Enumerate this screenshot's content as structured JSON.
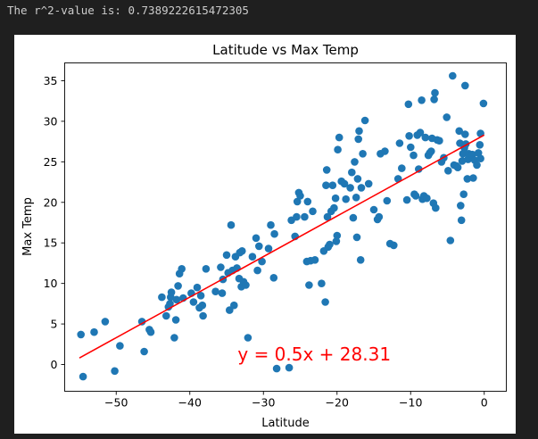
{
  "output": {
    "text": "The r^2-value is: 0.7389222615472305"
  },
  "chart_data": {
    "type": "scatter",
    "title": "Latitude vs Max Temp",
    "xlabel": "Latitude",
    "ylabel": "Max Temp",
    "xlim": [
      -57,
      3
    ],
    "ylim": [
      -3.3,
      37.2
    ],
    "xticks": [
      -50,
      -40,
      -30,
      -20,
      -10,
      0
    ],
    "yticks": [
      0,
      5,
      10,
      15,
      20,
      25,
      30,
      35
    ],
    "grid": false,
    "points_color": "#1f77b4",
    "regression": {
      "slope": 0.5,
      "intercept": 28.31,
      "x_range": [
        -55,
        0
      ],
      "color": "#ff0000",
      "equation_text": "y = 0.5x + 28.31",
      "equation_position": [
        -33.5,
        0.5
      ]
    },
    "points": [
      [
        -54.8,
        3.7
      ],
      [
        -54.5,
        -1.5
      ],
      [
        -53,
        4.0
      ],
      [
        -51.5,
        5.3
      ],
      [
        -50.2,
        -0.8
      ],
      [
        -49.5,
        2.3
      ],
      [
        -46.5,
        5.3
      ],
      [
        -46.2,
        1.6
      ],
      [
        -45.5,
        4.3
      ],
      [
        -45.3,
        4.0
      ],
      [
        -43.8,
        8.3
      ],
      [
        -43.2,
        6.0
      ],
      [
        -42.9,
        7.1
      ],
      [
        -42.7,
        7.5
      ],
      [
        -42.6,
        8.3
      ],
      [
        -42.5,
        8.9
      ],
      [
        -42.1,
        3.3
      ],
      [
        -41.9,
        5.5
      ],
      [
        -41.8,
        8.0
      ],
      [
        -41.6,
        9.7
      ],
      [
        -41.4,
        11.2
      ],
      [
        -41.1,
        11.8
      ],
      [
        -40.9,
        8.2
      ],
      [
        -39.8,
        8.8
      ],
      [
        -39.5,
        7.7
      ],
      [
        -39,
        9.5
      ],
      [
        -38.7,
        7.0
      ],
      [
        -38.5,
        8.5
      ],
      [
        -38.3,
        7.3
      ],
      [
        -38.2,
        6.0
      ],
      [
        -37.8,
        11.8
      ],
      [
        -36.5,
        9.0
      ],
      [
        -35.8,
        12.0
      ],
      [
        -35.6,
        8.8
      ],
      [
        -35.5,
        10.5
      ],
      [
        -35,
        13.5
      ],
      [
        -34.8,
        11.3
      ],
      [
        -34.6,
        6.7
      ],
      [
        -34.4,
        17.2
      ],
      [
        -34.2,
        11.6
      ],
      [
        -34,
        7.3
      ],
      [
        -33.8,
        13.3
      ],
      [
        -33.6,
        11.9
      ],
      [
        -33.3,
        10.6
      ],
      [
        -33.2,
        13.8
      ],
      [
        -33,
        9.6
      ],
      [
        -32.9,
        14.0
      ],
      [
        -32.7,
        10.2
      ],
      [
        -32.4,
        9.8
      ],
      [
        -32.1,
        3.3
      ],
      [
        -31.5,
        13.3
      ],
      [
        -31,
        15.6
      ],
      [
        -30.8,
        11.6
      ],
      [
        -30.6,
        14.6
      ],
      [
        -30.2,
        12.7
      ],
      [
        -29.3,
        14.3
      ],
      [
        -29,
        17.2
      ],
      [
        -28.6,
        10.7
      ],
      [
        -28.5,
        16.1
      ],
      [
        -28.2,
        -0.5
      ],
      [
        -26.5,
        -0.4
      ],
      [
        -26.2,
        17.8
      ],
      [
        -25.7,
        15.8
      ],
      [
        -25.5,
        18.2
      ],
      [
        -25.4,
        20.1
      ],
      [
        -25.2,
        21.2
      ],
      [
        -25,
        20.8
      ],
      [
        -24.4,
        18.2
      ],
      [
        -24.1,
        12.7
      ],
      [
        -24,
        20.1
      ],
      [
        -23.8,
        9.8
      ],
      [
        -23.6,
        12.8
      ],
      [
        -23.3,
        18.9
      ],
      [
        -23,
        12.9
      ],
      [
        -22.1,
        10.0
      ],
      [
        -21.8,
        14.0
      ],
      [
        -21.6,
        7.7
      ],
      [
        -21.5,
        22.1
      ],
      [
        -21.4,
        24.0
      ],
      [
        -21.3,
        18.2
      ],
      [
        -21.2,
        14.5
      ],
      [
        -21,
        14.8
      ],
      [
        -20.8,
        18.9
      ],
      [
        -20.6,
        22.1
      ],
      [
        -20.4,
        19.3
      ],
      [
        -20.2,
        20.5
      ],
      [
        -20.1,
        15.2
      ],
      [
        -20,
        15.9
      ],
      [
        -19.9,
        26.5
      ],
      [
        -19.7,
        28.0
      ],
      [
        -19.4,
        22.6
      ],
      [
        -19,
        22.3
      ],
      [
        -18.8,
        20.4
      ],
      [
        -18.2,
        21.8
      ],
      [
        -18,
        23.7
      ],
      [
        -17.8,
        18.1
      ],
      [
        -17.6,
        25.0
      ],
      [
        -17.4,
        20.6
      ],
      [
        -17.3,
        15.7
      ],
      [
        -17.2,
        22.9
      ],
      [
        -17.1,
        27.8
      ],
      [
        -17,
        28.8
      ],
      [
        -16.8,
        12.9
      ],
      [
        -16.7,
        21.8
      ],
      [
        -16.5,
        26.0
      ],
      [
        -16.2,
        30.1
      ],
      [
        -15.7,
        22.3
      ],
      [
        -15,
        19.1
      ],
      [
        -14.5,
        17.9
      ],
      [
        -14.3,
        18.2
      ],
      [
        -14.1,
        26.0
      ],
      [
        -13.5,
        26.3
      ],
      [
        -13.2,
        20.2
      ],
      [
        -12.8,
        14.9
      ],
      [
        -12.3,
        14.7
      ],
      [
        -11.7,
        22.9
      ],
      [
        -11.5,
        27.3
      ],
      [
        -11.2,
        24.2
      ],
      [
        -10.5,
        20.3
      ],
      [
        -10.3,
        32.1
      ],
      [
        -10.2,
        28.2
      ],
      [
        -10,
        26.8
      ],
      [
        -9.6,
        25.8
      ],
      [
        -9.5,
        21.0
      ],
      [
        -9.3,
        20.8
      ],
      [
        -9.1,
        28.3
      ],
      [
        -8.9,
        24.1
      ],
      [
        -8.7,
        28.6
      ],
      [
        -8.5,
        32.6
      ],
      [
        -8.4,
        20.4
      ],
      [
        -8.2,
        20.8
      ],
      [
        -8,
        28.0
      ],
      [
        -7.8,
        20.5
      ],
      [
        -7.6,
        25.8
      ],
      [
        -7.4,
        26.1
      ],
      [
        -7.2,
        26.3
      ],
      [
        -7.1,
        27.9
      ],
      [
        -6.9,
        19.9
      ],
      [
        -6.8,
        32.7
      ],
      [
        -6.7,
        33.5
      ],
      [
        -6.6,
        19.3
      ],
      [
        -6.4,
        27.7
      ],
      [
        -6.1,
        27.6
      ],
      [
        -5.8,
        25.0
      ],
      [
        -5.5,
        25.5
      ],
      [
        -5.1,
        30.5
      ],
      [
        -4.9,
        23.9
      ],
      [
        -4.6,
        15.3
      ],
      [
        -4.3,
        35.6
      ],
      [
        -4.1,
        24.6
      ],
      [
        -3.8,
        24.5
      ],
      [
        -3.6,
        24.3
      ],
      [
        -3.4,
        28.8
      ],
      [
        -3.3,
        27.3
      ],
      [
        -3.2,
        19.6
      ],
      [
        -3.1,
        17.8
      ],
      [
        -3,
        25.1
      ],
      [
        -2.9,
        26.0
      ],
      [
        -2.8,
        21.0
      ],
      [
        -2.7,
        26.7
      ],
      [
        -2.6,
        28.4
      ],
      [
        -2.6,
        34.4
      ],
      [
        -2.5,
        27.2
      ],
      [
        -2.3,
        22.9
      ],
      [
        -2.2,
        25.3
      ],
      [
        -2.1,
        26.0
      ],
      [
        -2,
        25.5
      ],
      [
        -1.6,
        25.9
      ],
      [
        -1.5,
        23.0
      ],
      [
        -1.3,
        25.2
      ],
      [
        -1,
        24.6
      ],
      [
        -0.8,
        26.1
      ],
      [
        -0.6,
        27.1
      ],
      [
        -0.5,
        25.4
      ],
      [
        -0.5,
        28.5
      ],
      [
        -0.1,
        32.2
      ]
    ]
  }
}
